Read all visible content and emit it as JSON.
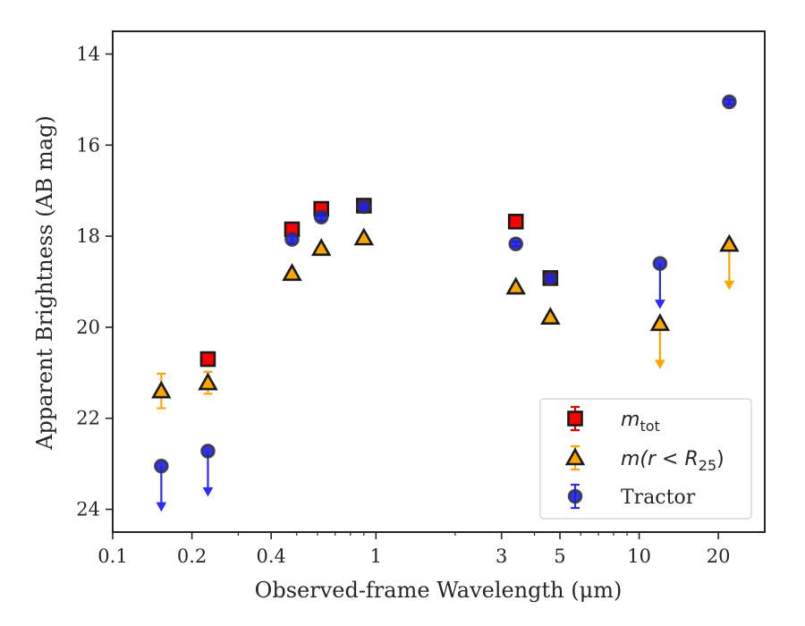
{
  "chart_data": {
    "type": "scatter",
    "xlabel": "Observed-frame Wavelength (μm)",
    "ylabel": "Apparent Brightness (AB mag)",
    "x_scale": "log",
    "xlim": [
      0.1,
      30
    ],
    "ylim": [
      24.5,
      13.5
    ],
    "y_inverted": true,
    "x_ticks": [
      0.1,
      0.2,
      0.4,
      1,
      3,
      5,
      10,
      20
    ],
    "x_tick_labels": [
      "0.1",
      "0.2",
      "0.4",
      "1",
      "3",
      "5",
      "10",
      "20"
    ],
    "y_ticks": [
      14,
      16,
      18,
      20,
      22,
      24
    ],
    "y_tick_labels": [
      "14",
      "16",
      "18",
      "20",
      "22",
      "24"
    ],
    "grid": false,
    "legend_position": "lower-right",
    "series": [
      {
        "name": "m_tot",
        "label_main": "m",
        "label_sub": "tot",
        "marker": "square",
        "color": "#ff0000",
        "edge_color": "#1a1a1a",
        "error_color": "#e00000",
        "points": [
          {
            "x": 0.23,
            "y": 20.7,
            "err": 0.12
          },
          {
            "x": 0.48,
            "y": 17.85,
            "err": 0.08
          },
          {
            "x": 0.62,
            "y": 17.4,
            "err": 0.08
          },
          {
            "x": 0.9,
            "y": 17.33,
            "err": 0.08
          },
          {
            "x": 3.4,
            "y": 17.68,
            "err": 0.08
          },
          {
            "x": 4.6,
            "y": 18.92,
            "err": 0.08
          }
        ]
      },
      {
        "name": "m(r < R_25)",
        "label_main": "m(r < R",
        "label_sub": "25",
        "label_end": ")",
        "marker": "triangle",
        "color": "#ffa500",
        "edge_color": "#1a1a1a",
        "error_color": "#ffa500",
        "points": [
          {
            "x": 0.153,
            "y": 21.4,
            "err": 0.38
          },
          {
            "x": 0.23,
            "y": 21.22,
            "err": 0.24
          },
          {
            "x": 0.48,
            "y": 18.82,
            "err": 0.06
          },
          {
            "x": 0.62,
            "y": 18.27,
            "err": 0.06
          },
          {
            "x": 0.9,
            "y": 18.04,
            "err": 0.06
          },
          {
            "x": 3.4,
            "y": 19.12,
            "err": 0.06
          },
          {
            "x": 4.6,
            "y": 19.78,
            "err": 0.06
          },
          {
            "x": 12.0,
            "y": 19.92,
            "upper_limit": true
          },
          {
            "x": 22.0,
            "y": 18.18,
            "upper_limit": true
          }
        ]
      },
      {
        "name": "Tractor",
        "label_main": "Tractor",
        "marker": "circle",
        "color": "#1f1fdc",
        "edge_color": "#333333",
        "error_color": "#2b2bff",
        "points": [
          {
            "x": 0.153,
            "y": 23.05,
            "upper_limit": true
          },
          {
            "x": 0.23,
            "y": 22.72,
            "upper_limit": true
          },
          {
            "x": 0.48,
            "y": 18.07,
            "err": 0.08
          },
          {
            "x": 0.62,
            "y": 17.58,
            "err": 0.08
          },
          {
            "x": 0.9,
            "y": 17.35,
            "err": 0.05
          },
          {
            "x": 3.4,
            "y": 18.17,
            "err": 0.05
          },
          {
            "x": 4.6,
            "y": 18.93,
            "err": 0.05
          },
          {
            "x": 12.0,
            "y": 18.6,
            "upper_limit": true
          },
          {
            "x": 22.0,
            "y": 15.05,
            "err": 0.05
          }
        ]
      }
    ]
  }
}
